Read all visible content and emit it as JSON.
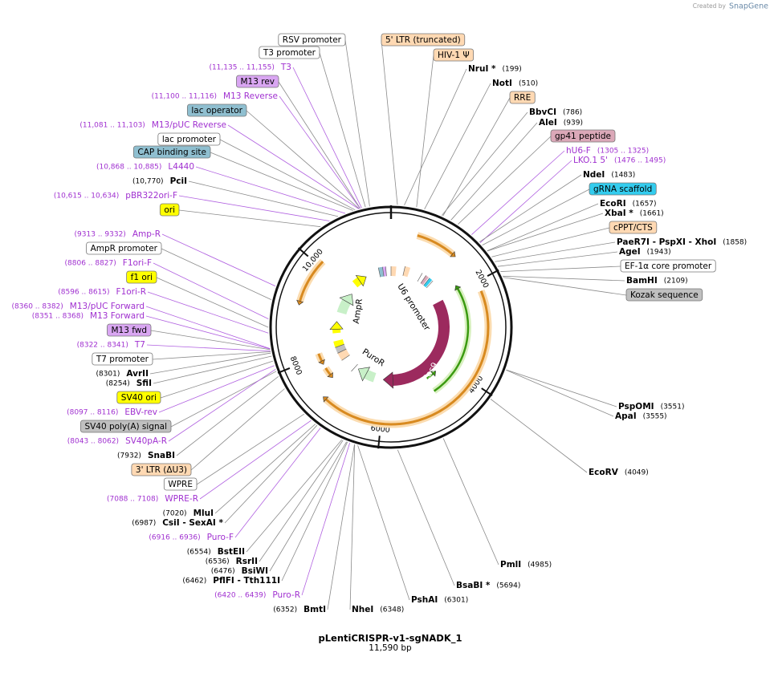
{
  "header": {
    "created_by": "Created by",
    "brand": "SnapGene"
  },
  "title": "pLentiCRISPR-v1-sgNADK_1",
  "size": "11,590 bp",
  "scale_labels": [
    "2000",
    "4000",
    "6000",
    "8000",
    "10,000"
  ],
  "inner_labels": [
    "U6 promoter",
    "Cas9",
    "PuroR",
    "AmpR"
  ],
  "labels": [
    {
      "text": "RSV promoter",
      "kind": "feature",
      "color": "#ffffff"
    },
    {
      "text": "T3 promoter",
      "kind": "feature",
      "color": "#ffffff"
    },
    {
      "text": "T3",
      "loc": "(11,135 .. 11,155)",
      "kind": "primer"
    },
    {
      "text": "M13 rev",
      "kind": "feature",
      "color": "#d9a6f2"
    },
    {
      "text": "M13 Reverse",
      "loc": "(11,100 .. 11,116)",
      "kind": "primer"
    },
    {
      "text": "lac operator",
      "kind": "feature",
      "color": "#8fbfd0"
    },
    {
      "text": "M13/pUC Reverse",
      "loc": "(11,081 .. 11,103)",
      "kind": "primer"
    },
    {
      "text": "lac promoter",
      "kind": "feature",
      "color": "#ffffff"
    },
    {
      "text": "CAP binding site",
      "kind": "feature",
      "color": "#8fbfd0"
    },
    {
      "text": "L4440",
      "loc": "(10,868 .. 10,885)",
      "kind": "primer"
    },
    {
      "text": "PciI",
      "loc": "(10,770)",
      "kind": "site"
    },
    {
      "text": "pBR322ori-F",
      "loc": "(10,615 .. 10,634)",
      "kind": "primer"
    },
    {
      "text": "ori",
      "kind": "feature",
      "color": "#ffff00"
    },
    {
      "text": "Amp-R",
      "loc": "(9313 .. 9332)",
      "kind": "primer"
    },
    {
      "text": "AmpR promoter",
      "kind": "feature",
      "color": "#ffffff"
    },
    {
      "text": "F1ori-F",
      "loc": "(8806 .. 8827)",
      "kind": "primer"
    },
    {
      "text": "f1 ori",
      "kind": "feature",
      "color": "#ffff00"
    },
    {
      "text": "F1ori-R",
      "loc": "(8596 .. 8615)",
      "kind": "primer"
    },
    {
      "text": "M13/pUC Forward",
      "loc": "(8360 .. 8382)",
      "kind": "primer"
    },
    {
      "text": "M13 Forward",
      "loc": "(8351 .. 8368)",
      "kind": "primer"
    },
    {
      "text": "M13 fwd",
      "kind": "feature",
      "color": "#d9a6f2"
    },
    {
      "text": "T7",
      "loc": "(8322 .. 8341)",
      "kind": "primer"
    },
    {
      "text": "T7 promoter",
      "kind": "feature",
      "color": "#ffffff"
    },
    {
      "text": "AvrII",
      "loc": "(8301)",
      "kind": "site"
    },
    {
      "text": "SfiI",
      "loc": "(8254)",
      "kind": "site"
    },
    {
      "text": "SV40 ori",
      "kind": "feature",
      "color": "#ffff00"
    },
    {
      "text": "EBV-rev",
      "loc": "(8097 .. 8116)",
      "kind": "primer"
    },
    {
      "text": "SV40 poly(A) signal",
      "kind": "feature",
      "color": "#c0c0c0"
    },
    {
      "text": "SV40pA-R",
      "loc": "(8043 .. 8062)",
      "kind": "primer"
    },
    {
      "text": "SnaBI",
      "loc": "(7932)",
      "kind": "site"
    },
    {
      "text": "3' LTR (ΔU3)",
      "kind": "feature",
      "color": "#ffd9b3"
    },
    {
      "text": "WPRE",
      "kind": "feature",
      "color": "#ffffff"
    },
    {
      "text": "WPRE-R",
      "loc": "(7088 .. 7108)",
      "kind": "primer"
    },
    {
      "text": "MluI",
      "loc": "(7020)",
      "kind": "site"
    },
    {
      "text": "CsiI  - SexAI *",
      "loc": "(6987)",
      "kind": "site"
    },
    {
      "text": "Puro-F",
      "loc": "(6916 .. 6936)",
      "kind": "primer"
    },
    {
      "text": "BstEII",
      "loc": "(6554)",
      "kind": "site"
    },
    {
      "text": "RsrII",
      "loc": "(6536)",
      "kind": "site"
    },
    {
      "text": "BsiWI",
      "loc": "(6476)",
      "kind": "site"
    },
    {
      "text": "PflFI  - Tth111I",
      "loc": "(6462)",
      "kind": "site"
    },
    {
      "text": "Puro-R",
      "loc": "(6420 .. 6439)",
      "kind": "primer"
    },
    {
      "text": "BmtI",
      "loc": "(6352)",
      "kind": "site"
    },
    {
      "text": "NheI",
      "loc": "(6348)",
      "kind": "site"
    },
    {
      "text": "PshAI",
      "loc": "(6301)",
      "kind": "site"
    },
    {
      "text": "BsaBI *",
      "loc": "(5694)",
      "kind": "site"
    },
    {
      "text": "PmlI",
      "loc": "(4985)",
      "kind": "site"
    },
    {
      "text": "EcoRV",
      "loc": "(4049)",
      "kind": "site"
    },
    {
      "text": "PspOMI",
      "loc": "(3551)",
      "kind": "site"
    },
    {
      "text": "ApaI",
      "loc": "(3555)",
      "kind": "site"
    },
    {
      "text": "5' LTR (truncated)",
      "kind": "feature",
      "color": "#ffd9b3"
    },
    {
      "text": "HIV-1 Ψ",
      "kind": "feature",
      "color": "#ffd9b3"
    },
    {
      "text": "NruI *",
      "loc": "(199)",
      "kind": "site"
    },
    {
      "text": "NotI",
      "loc": "(510)",
      "kind": "site"
    },
    {
      "text": "RRE",
      "kind": "feature",
      "color": "#ffd9b3"
    },
    {
      "text": "BbvCI",
      "loc": "(786)",
      "kind": "site"
    },
    {
      "text": "AleI",
      "loc": "(939)",
      "kind": "site"
    },
    {
      "text": "gp41 peptide",
      "kind": "feature",
      "color": "#dba8b8"
    },
    {
      "text": "hU6-F",
      "loc": "(1305 .. 1325)",
      "kind": "primer"
    },
    {
      "text": "LKO.1 5'",
      "loc": "(1476 .. 1495)",
      "kind": "primer"
    },
    {
      "text": "NdeI",
      "loc": "(1483)",
      "kind": "site"
    },
    {
      "text": "gRNA scaffold",
      "kind": "feature",
      "color": "#33ccee"
    },
    {
      "text": "EcoRI",
      "loc": "(1657)",
      "kind": "site"
    },
    {
      "text": "XbaI *",
      "loc": "(1661)",
      "kind": "site"
    },
    {
      "text": "cPPT/CTS",
      "kind": "feature",
      "color": "#ffd9b3"
    },
    {
      "text": "PaeR7I  - PspXI  - XhoI",
      "loc": "(1858)",
      "kind": "site"
    },
    {
      "text": "AgeI",
      "loc": "(1943)",
      "kind": "site"
    },
    {
      "text": "EF-1α core promoter",
      "kind": "feature",
      "color": "#ffffff"
    },
    {
      "text": "BamHI",
      "loc": "(2109)",
      "kind": "site"
    },
    {
      "text": "Kozak sequence",
      "kind": "feature",
      "color": "#c0c0c0"
    }
  ]
}
